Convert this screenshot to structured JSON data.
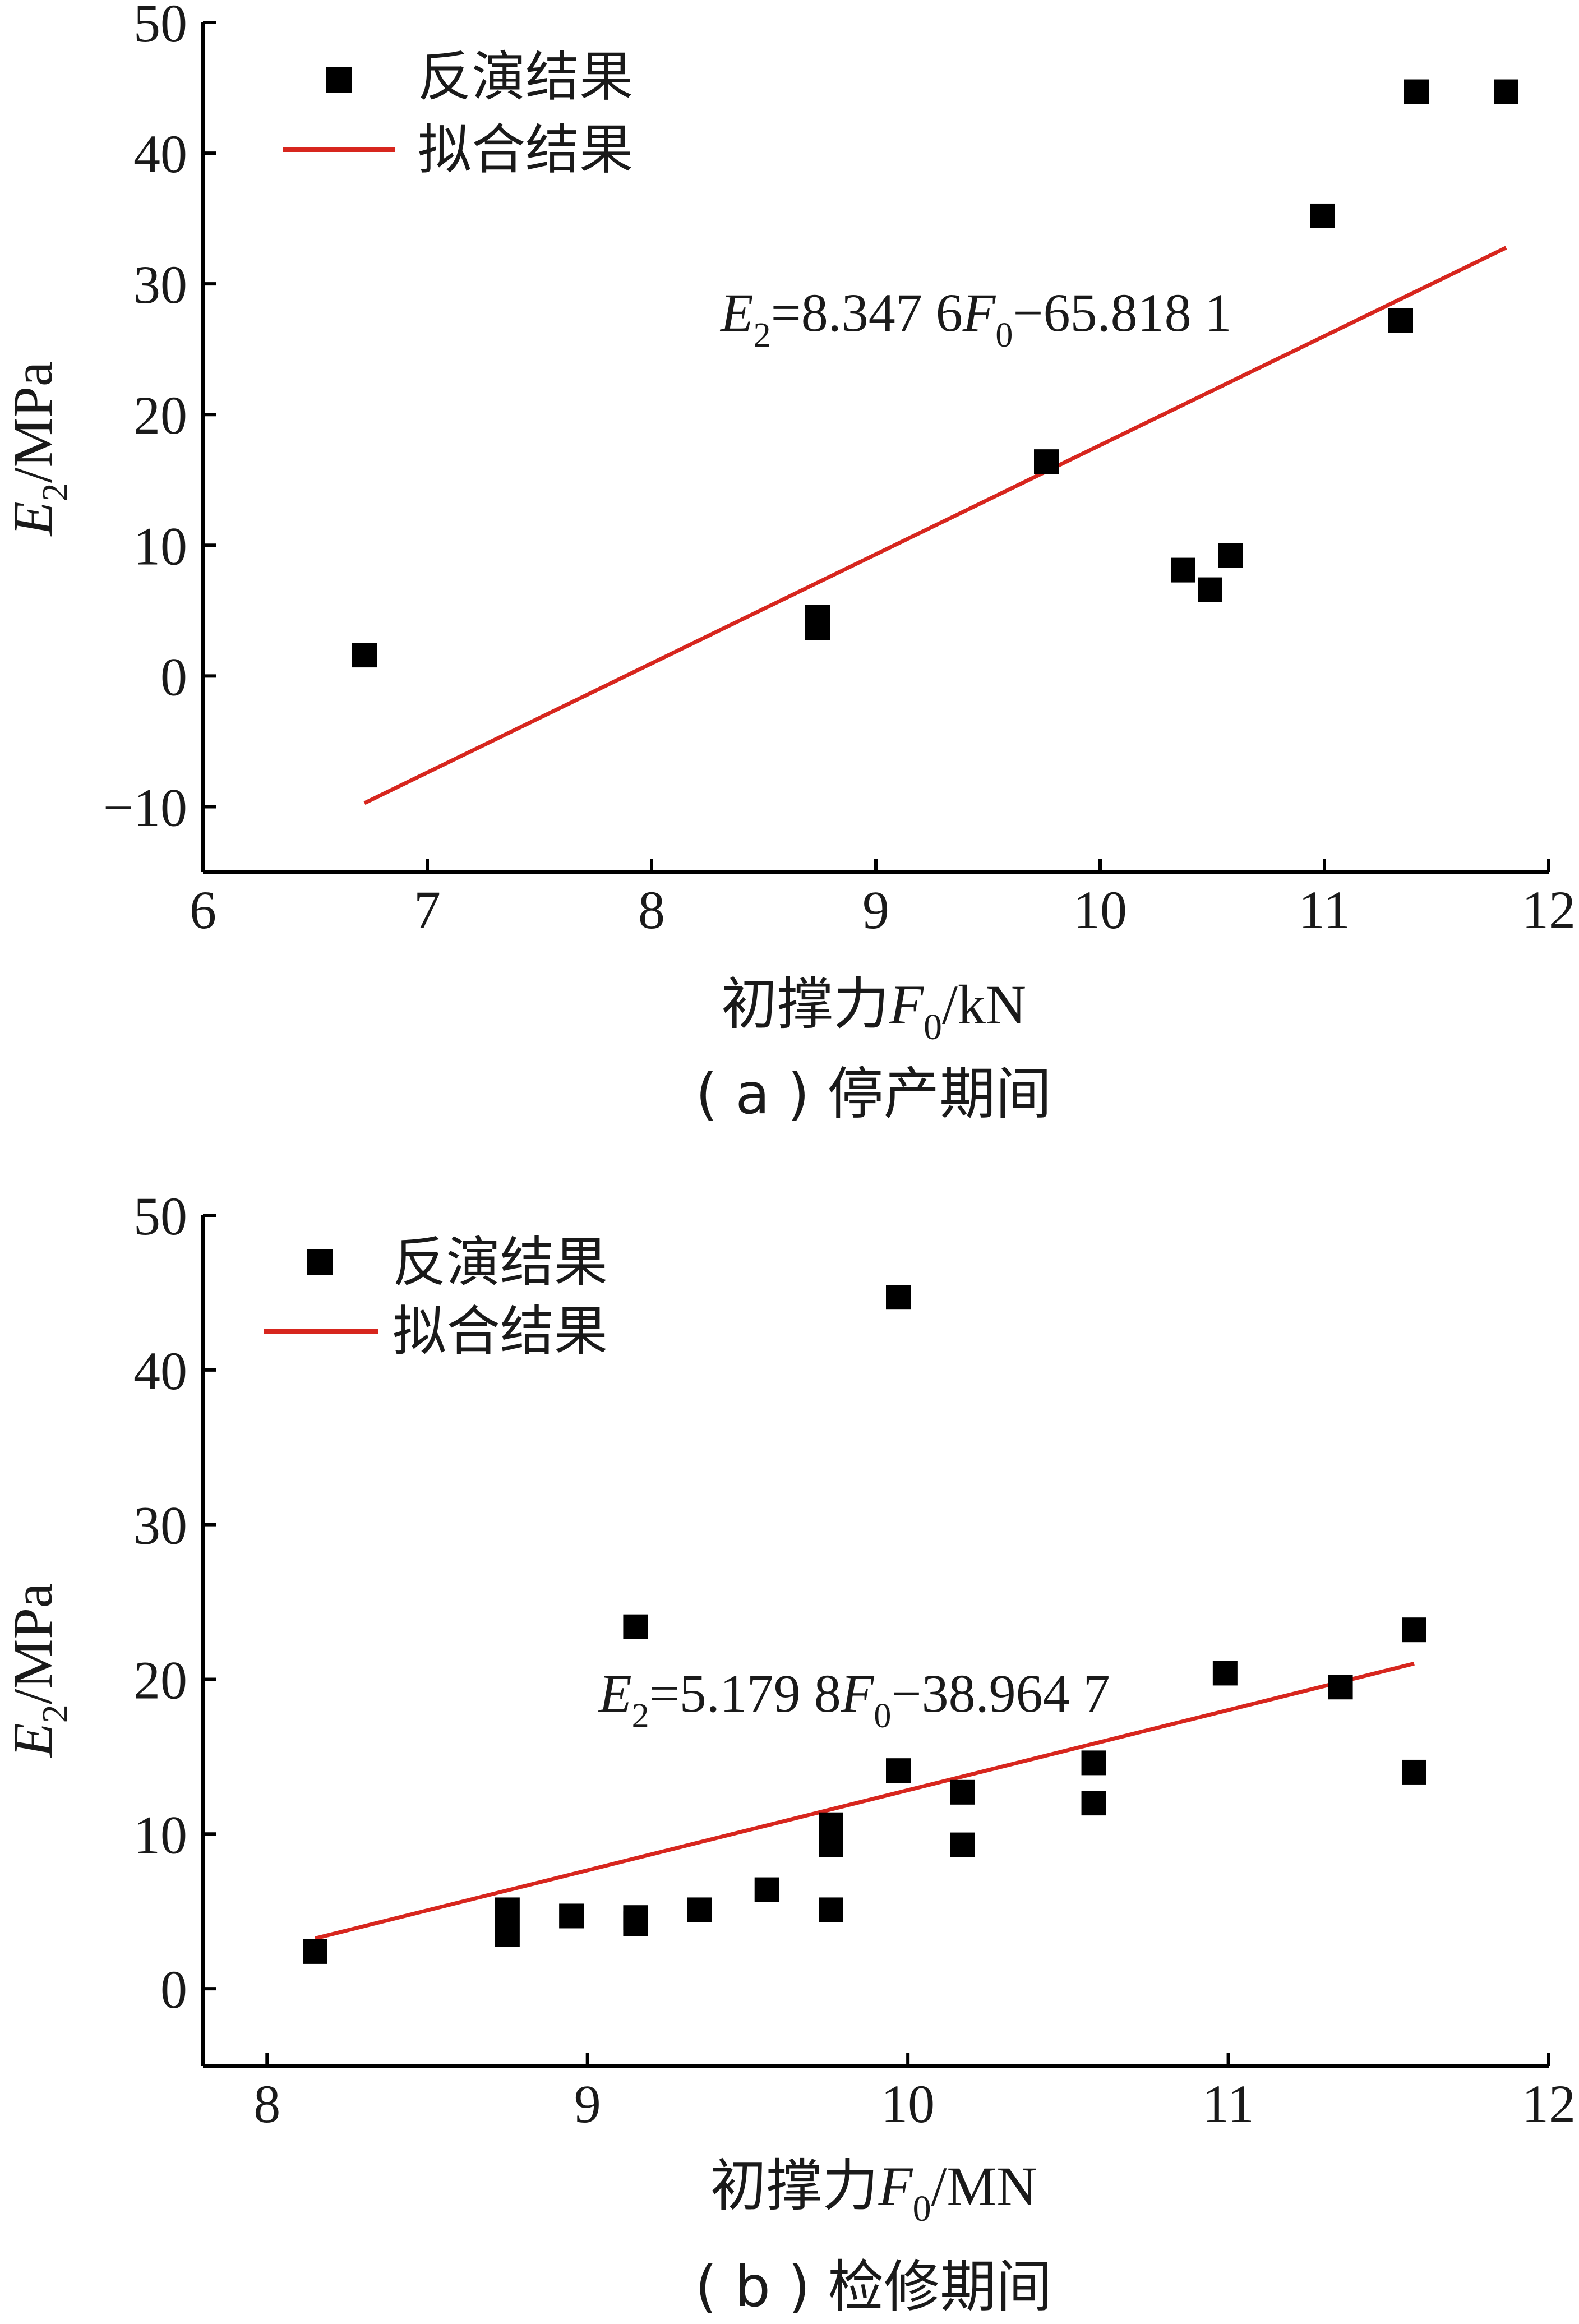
{
  "chart_data": [
    {
      "type": "scatter",
      "xlim": [
        6,
        12
      ],
      "ylim": [
        -15,
        50
      ],
      "xticks": [
        6,
        7,
        8,
        9,
        10,
        11,
        12
      ],
      "yticks": [
        -10,
        0,
        10,
        20,
        30,
        40,
        50
      ],
      "xtick_labels": [
        "6",
        "7",
        "8",
        "9",
        "10",
        "11",
        "12"
      ],
      "ytick_labels": [
        "−10",
        "0",
        "10",
        "20",
        "30",
        "40",
        "50"
      ],
      "xlabel": {
        "prefix": "初撑力",
        "var": "F",
        "sub": "0",
        "unit": "/kN"
      },
      "ylabel": {
        "var": "E",
        "sub": "2",
        "unit": "/MPa"
      },
      "caption": "( a ) 停产期间",
      "legend_position": "top-left",
      "series": [
        {
          "name": "反演结果",
          "kind": "points",
          "color": "#000000",
          "points": [
            [
              6.72,
              1.6
            ],
            [
              8.74,
              4.5
            ],
            [
              8.74,
              3.7
            ],
            [
              9.76,
              16.4
            ],
            [
              10.37,
              8.1
            ],
            [
              10.49,
              6.6
            ],
            [
              10.58,
              9.2
            ],
            [
              10.99,
              35.2
            ],
            [
              11.34,
              27.2
            ],
            [
              11.41,
              44.7
            ],
            [
              11.81,
              44.7
            ]
          ]
        },
        {
          "name": "拟合结果",
          "kind": "line",
          "color": "#d7261e",
          "x_range": [
            6.72,
            11.81
          ],
          "slope": 8.3476,
          "intercept": -65.8181
        }
      ],
      "annotation": {
        "var": "E",
        "sub": "2",
        "rest1": "=8.347 6",
        "var2": "F",
        "sub2": "0",
        "rest2": "−65.818 1"
      }
    },
    {
      "type": "scatter",
      "xlim": [
        7.8,
        12
      ],
      "ylim": [
        -5,
        50
      ],
      "xticks": [
        8,
        9,
        10,
        11,
        12
      ],
      "yticks": [
        0,
        10,
        20,
        30,
        40,
        50
      ],
      "xtick_labels": [
        "8",
        "9",
        "10",
        "11",
        "12"
      ],
      "ytick_labels": [
        "0",
        "10",
        "20",
        "30",
        "40",
        "50"
      ],
      "xlabel": {
        "prefix": "初撑力",
        "var": "F",
        "sub": "0",
        "unit": "/MN"
      },
      "ylabel": {
        "var": "E",
        "sub": "2",
        "unit": "/MPa"
      },
      "caption": "( b ) 检修期间",
      "legend_position": "top-left",
      "series": [
        {
          "name": "反演结果",
          "kind": "points",
          "color": "#000000",
          "points": [
            [
              8.15,
              2.4
            ],
            [
              8.75,
              5.1
            ],
            [
              8.75,
              3.5
            ],
            [
              8.95,
              4.7
            ],
            [
              9.15,
              23.4
            ],
            [
              9.15,
              4.6
            ],
            [
              9.15,
              4.2
            ],
            [
              9.35,
              5.1
            ],
            [
              9.56,
              6.4
            ],
            [
              9.76,
              10.6
            ],
            [
              9.76,
              9.3
            ],
            [
              9.76,
              5.1
            ],
            [
              9.97,
              44.7
            ],
            [
              9.97,
              14.1
            ],
            [
              10.17,
              12.7
            ],
            [
              10.17,
              9.3
            ],
            [
              10.58,
              14.6
            ],
            [
              10.58,
              12.0
            ],
            [
              10.99,
              20.4
            ],
            [
              11.35,
              19.5
            ],
            [
              11.58,
              23.2
            ],
            [
              11.58,
              14.0
            ]
          ]
        },
        {
          "name": "拟合结果",
          "kind": "line",
          "color": "#d7261e",
          "x_range": [
            8.15,
            11.58
          ],
          "slope": 5.1798,
          "intercept": -38.9647
        }
      ],
      "annotation": {
        "var": "E",
        "sub": "2",
        "rest1": "=5.179 8",
        "var2": "F",
        "sub2": "0",
        "rest2": "−38.964 7"
      }
    }
  ]
}
